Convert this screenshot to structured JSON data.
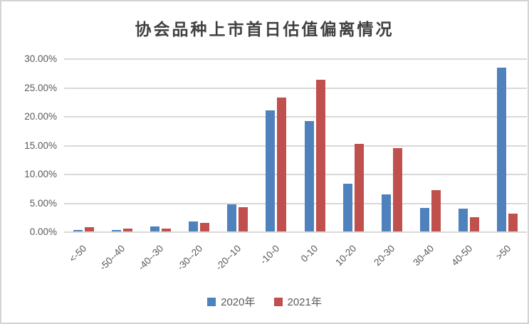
{
  "chart_data": {
    "type": "bar",
    "title": "协会品种上市首日估值偏离情况",
    "categories": [
      "<-50",
      "-50--40",
      "-40--30",
      "-30--20",
      "-20--10",
      "-10-0",
      "0-10",
      "10-20",
      "20-30",
      "30-40",
      "40-50",
      ">50"
    ],
    "series": [
      {
        "name": "2020年",
        "color": "#4F81BD",
        "values": [
          0.3,
          0.25,
          0.9,
          1.75,
          4.7,
          21.05,
          19.1,
          8.25,
          6.4,
          4.1,
          3.9,
          28.35
        ]
      },
      {
        "name": "2021年",
        "color": "#C0504D",
        "values": [
          0.7,
          0.45,
          0.55,
          1.45,
          4.15,
          23.2,
          26.3,
          15.2,
          14.45,
          7.2,
          2.5,
          3.15
        ]
      }
    ],
    "xlabel": "",
    "ylabel": "",
    "ylim": [
      0,
      30
    ],
    "ytick_labels": [
      "0.00%",
      "5.00%",
      "10.00%",
      "15.00%",
      "20.00%",
      "25.00%",
      "30.00%"
    ],
    "grid": true,
    "legend_position": "bottom"
  },
  "colors": {
    "series_2020": "#4F81BD",
    "series_2021": "#C0504D",
    "gridline": "#d9d9d9",
    "axis_text": "#595959",
    "title_text": "#404040",
    "border": "#d4d4d4"
  }
}
